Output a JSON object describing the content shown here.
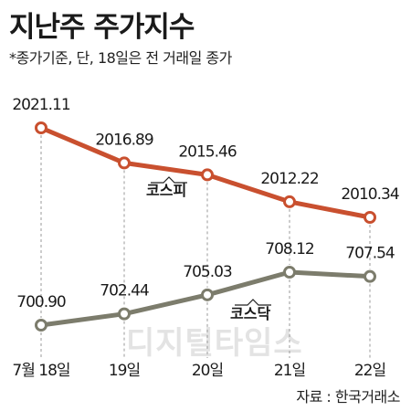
{
  "title": "지난주 주가지수",
  "subtitle": "*종가기준, 단, 18일은 전 거래일 종가",
  "source": "자료 : 한국거래소",
  "watermark": "디지털타임스",
  "colors": {
    "kospi": "#c9502f",
    "kosdaq": "#7c7c6c",
    "guide": "#9a9a9a"
  },
  "chart_data": {
    "type": "line",
    "title": "지난주 주가지수",
    "categories": [
      "7월 18일",
      "19일",
      "20일",
      "21일",
      "22일"
    ],
    "series": [
      {
        "name": "코스피",
        "values": [
          2021.11,
          2016.89,
          2015.46,
          2012.22,
          2010.34
        ],
        "labels": [
          "2021.11",
          "2016.89",
          "2015.46",
          "2012.22",
          "2010.34"
        ]
      },
      {
        "name": "코스닥",
        "values": [
          700.9,
          702.44,
          705.03,
          708.12,
          707.54
        ],
        "labels": [
          "700.90",
          "702.44",
          "705.03",
          "708.12",
          "707.54"
        ]
      }
    ],
    "grid": false,
    "legend": "inline"
  }
}
